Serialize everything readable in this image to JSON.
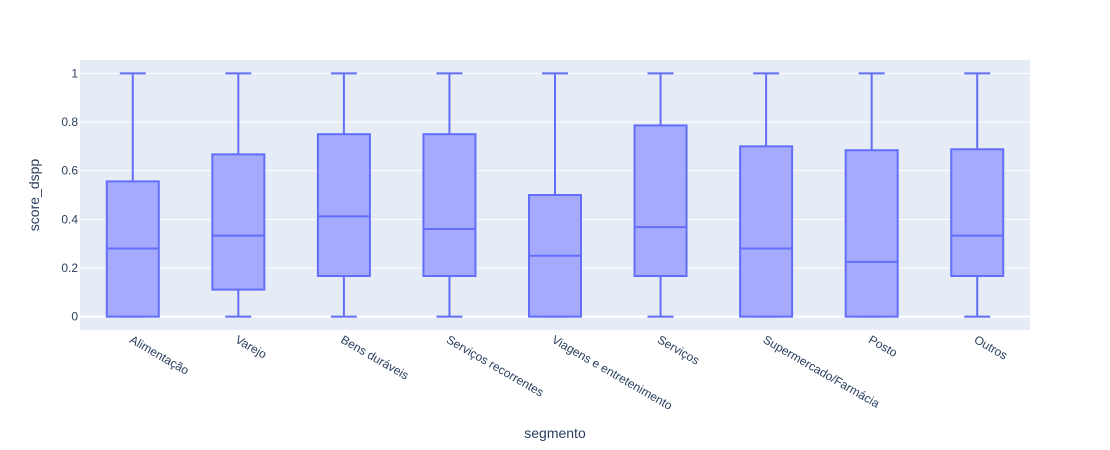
{
  "chart_data": {
    "type": "box",
    "xlabel": "segmento",
    "ylabel": "score_dspp",
    "ylim": [
      -0.055,
      1.055
    ],
    "yticks": [
      0,
      0.2,
      0.4,
      0.6,
      0.8,
      1
    ],
    "ytick_labels": [
      "0",
      "0.2",
      "0.4",
      "0.6",
      "0.8",
      "1"
    ],
    "grid": true,
    "categories": [
      "Alimentação",
      "Varejo",
      "Bens duráveis",
      "Serviços recorrentes",
      "Viagens e entretenimento",
      "Serviços",
      "Supermercado/Farmácia",
      "Posto",
      "Outros"
    ],
    "boxes": [
      {
        "min": 0,
        "q1": 0,
        "median": 0.28,
        "q3": 0.556,
        "max": 1
      },
      {
        "min": 0,
        "q1": 0.111,
        "median": 0.333,
        "q3": 0.667,
        "max": 1
      },
      {
        "min": 0,
        "q1": 0.167,
        "median": 0.412,
        "q3": 0.75,
        "max": 1
      },
      {
        "min": 0,
        "q1": 0.167,
        "median": 0.36,
        "q3": 0.75,
        "max": 1
      },
      {
        "min": 0,
        "q1": 0,
        "median": 0.25,
        "q3": 0.5,
        "max": 1
      },
      {
        "min": 0,
        "q1": 0.167,
        "median": 0.368,
        "q3": 0.786,
        "max": 1
      },
      {
        "min": 0,
        "q1": 0,
        "median": 0.28,
        "q3": 0.7,
        "max": 1
      },
      {
        "min": 0,
        "q1": 0,
        "median": 0.225,
        "q3": 0.684,
        "max": 1
      },
      {
        "min": 0,
        "q1": 0.167,
        "median": 0.333,
        "q3": 0.688,
        "max": 1
      }
    ],
    "colors": {
      "box_line": "#636efa",
      "box_fill": "#a5aafc",
      "plot_bg": "#e5ecf6",
      "grid": "#ffffff",
      "text": "#2a3f5f"
    }
  }
}
